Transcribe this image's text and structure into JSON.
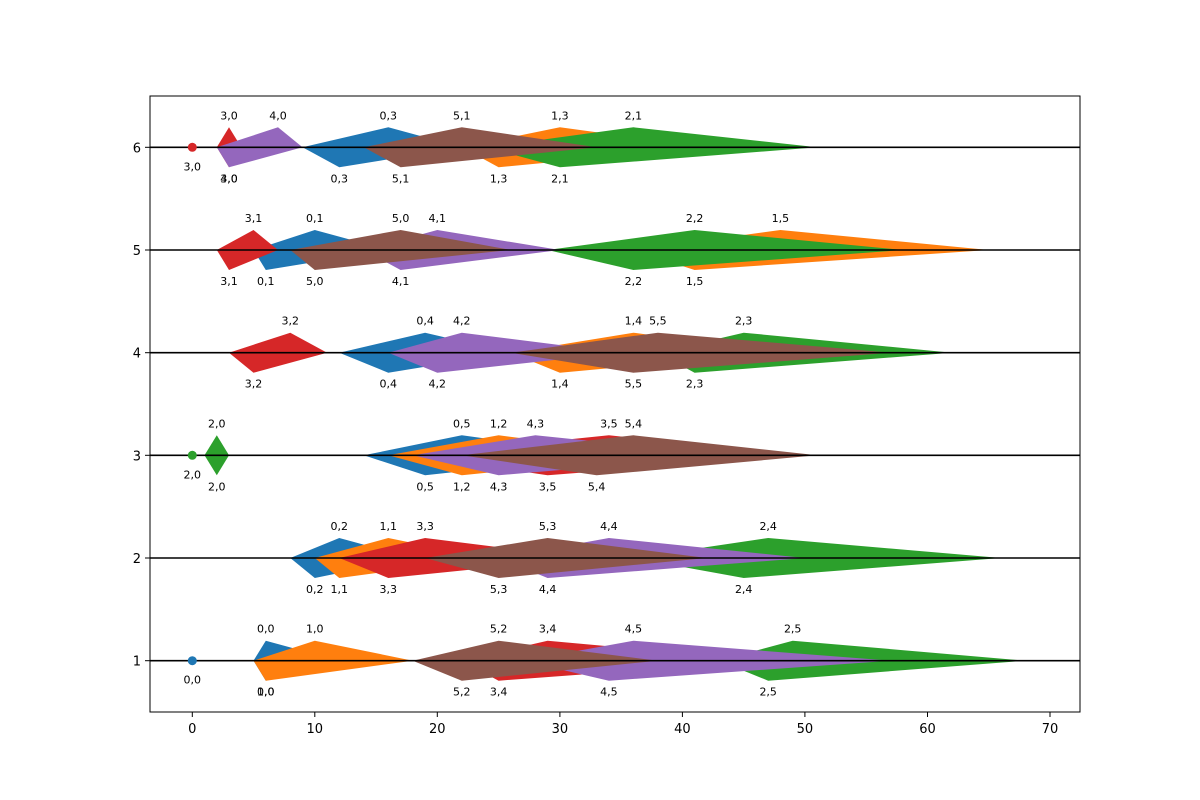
{
  "chart_data": {
    "type": "area",
    "title": "",
    "xlabel": "",
    "ylabel": "",
    "xlim": [
      -3.45,
      72.45
    ],
    "ylim": [
      0.5,
      6.5
    ],
    "x_ticks": [
      0,
      10,
      20,
      30,
      40,
      50,
      60,
      70
    ],
    "y_ticks": [
      1,
      2,
      3,
      4,
      5,
      6
    ],
    "reference_lines_y": [
      1,
      2,
      3,
      4,
      5,
      6
    ],
    "colors": [
      "#1f77b4",
      "#ff7f0e",
      "#2ca02c",
      "#d62728",
      "#9467bd",
      "#8c564b"
    ],
    "markers": [
      {
        "x": 0,
        "y": 6,
        "color": "#d62728",
        "label": "3,0"
      },
      {
        "x": 0,
        "y": 3,
        "color": "#2ca02c",
        "label": "2,0"
      },
      {
        "x": 0,
        "y": 1,
        "color": "#1f77b4",
        "label": "0,0"
      }
    ],
    "shapes": [
      {
        "row": 1,
        "color": "#2ca02c",
        "label": "2,5",
        "x_start": 43,
        "x_peak_above": 49,
        "x_peak_below": 47,
        "x_end": 68
      },
      {
        "row": 1,
        "color": "#d62728",
        "label": "3,4",
        "x_start": 22,
        "x_peak_above": 29,
        "x_peak_below": 25,
        "x_end": 47
      },
      {
        "row": 1,
        "color": "#9467bd",
        "label": "4,5",
        "x_start": 27,
        "x_peak_above": 36,
        "x_peak_below": 34,
        "x_end": 57
      },
      {
        "row": 1,
        "color": "#8c564b",
        "label": "5,2",
        "x_start": 18,
        "x_peak_above": 25,
        "x_peak_below": 22,
        "x_end": 38
      },
      {
        "row": 1,
        "color": "#1f77b4",
        "label": "0,0",
        "x_start": 5,
        "x_peak_above": 6,
        "x_peak_below": 6,
        "x_end": 12
      },
      {
        "row": 1,
        "color": "#ff7f0e",
        "label": "1,0",
        "x_start": 5,
        "x_peak_above": 10,
        "x_peak_below": 6,
        "x_end": 18
      },
      {
        "row": 2,
        "color": "#1f77b4",
        "label": "0,2",
        "x_start": 8,
        "x_peak_above": 12,
        "x_peak_below": 10,
        "x_end": 18
      },
      {
        "row": 2,
        "color": "#ff7f0e",
        "label": "1,1",
        "x_start": 10,
        "x_peak_above": 16,
        "x_peak_below": 12,
        "x_end": 24
      },
      {
        "row": 2,
        "color": "#2ca02c",
        "label": "2,4",
        "x_start": 36,
        "x_peak_above": 47,
        "x_peak_below": 45,
        "x_end": 66
      },
      {
        "row": 2,
        "color": "#d62728",
        "label": "3,3",
        "x_start": 12,
        "x_peak_above": 19,
        "x_peak_below": 16,
        "x_end": 32
      },
      {
        "row": 2,
        "color": "#9467bd",
        "label": "4,4",
        "x_start": 25,
        "x_peak_above": 34,
        "x_peak_below": 29,
        "x_end": 50
      },
      {
        "row": 2,
        "color": "#8c564b",
        "label": "5,3",
        "x_start": 19,
        "x_peak_above": 29,
        "x_peak_below": 25,
        "x_end": 42
      },
      {
        "row": 3,
        "color": "#1f77b4",
        "label": "0,5",
        "x_start": 14,
        "x_peak_above": 22,
        "x_peak_below": 19,
        "x_end": 34
      },
      {
        "row": 3,
        "color": "#ff7f0e",
        "label": "1,2",
        "x_start": 16,
        "x_peak_above": 25,
        "x_peak_below": 22,
        "x_end": 38
      },
      {
        "row": 3,
        "color": "#2ca02c",
        "label": "2,0",
        "x_start": 1,
        "x_peak_above": 2,
        "x_peak_below": 2,
        "x_end": 3
      },
      {
        "row": 3,
        "color": "#d62728",
        "label": "3,5",
        "x_start": 18,
        "x_peak_above": 34,
        "x_peak_below": 29,
        "x_end": 50
      },
      {
        "row": 3,
        "color": "#9467bd",
        "label": "4,3",
        "x_start": 18,
        "x_peak_above": 28,
        "x_peak_below": 25,
        "x_end": 44
      },
      {
        "row": 3,
        "color": "#8c564b",
        "label": "5,4",
        "x_start": 22,
        "x_peak_above": 36,
        "x_peak_below": 33,
        "x_end": 51
      },
      {
        "row": 4,
        "color": "#1f77b4",
        "label": "0,4",
        "x_start": 12,
        "x_peak_above": 19,
        "x_peak_below": 16,
        "x_end": 26
      },
      {
        "row": 4,
        "color": "#ff7f0e",
        "label": "1,4",
        "x_start": 26,
        "x_peak_above": 36,
        "x_peak_below": 30,
        "x_end": 48
      },
      {
        "row": 4,
        "color": "#2ca02c",
        "label": "2,3",
        "x_start": 38,
        "x_peak_above": 45,
        "x_peak_below": 41,
        "x_end": 62
      },
      {
        "row": 4,
        "color": "#d62728",
        "label": "3,2",
        "x_start": 3,
        "x_peak_above": 8,
        "x_peak_below": 5,
        "x_end": 11
      },
      {
        "row": 4,
        "color": "#9467bd",
        "label": "4,2",
        "x_start": 16,
        "x_peak_above": 22,
        "x_peak_below": 20,
        "x_end": 35
      },
      {
        "row": 4,
        "color": "#8c564b",
        "label": "5,5",
        "x_start": 26,
        "x_peak_above": 38,
        "x_peak_below": 36,
        "x_end": 57
      },
      {
        "row": 5,
        "color": "#1f77b4",
        "label": "0,1",
        "x_start": 5,
        "x_peak_above": 10,
        "x_peak_below": 6,
        "x_end": 16
      },
      {
        "row": 5,
        "color": "#ff7f0e",
        "label": "1,5",
        "x_start": 36,
        "x_peak_above": 48,
        "x_peak_below": 41,
        "x_end": 65
      },
      {
        "row": 5,
        "color": "#2ca02c",
        "label": "2,2",
        "x_start": 29,
        "x_peak_above": 41,
        "x_peak_below": 36,
        "x_end": 58
      },
      {
        "row": 5,
        "color": "#d62728",
        "label": "3,1",
        "x_start": 2,
        "x_peak_above": 5,
        "x_peak_below": 3,
        "x_end": 7
      },
      {
        "row": 5,
        "color": "#9467bd",
        "label": "4,1",
        "x_start": 14,
        "x_peak_above": 20,
        "x_peak_below": 17,
        "x_end": 30
      },
      {
        "row": 5,
        "color": "#8c564b",
        "label": "5,0",
        "x_start": 8,
        "x_peak_above": 17,
        "x_peak_below": 10,
        "x_end": 26
      },
      {
        "row": 6,
        "color": "#1f77b4",
        "label": "0,3",
        "x_start": 9,
        "x_peak_above": 16,
        "x_peak_below": 12,
        "x_end": 22
      },
      {
        "row": 6,
        "color": "#ff7f0e",
        "label": "1,3",
        "x_start": 22,
        "x_peak_above": 30,
        "x_peak_below": 25,
        "x_end": 42
      },
      {
        "row": 6,
        "color": "#2ca02c",
        "label": "2,1",
        "x_start": 24,
        "x_peak_above": 36,
        "x_peak_below": 30,
        "x_end": 51
      },
      {
        "row": 6,
        "color": "#d62728",
        "label": "3,0",
        "x_start": 2,
        "x_peak_above": 3,
        "x_peak_below": 3,
        "x_end": 4
      },
      {
        "row": 6,
        "color": "#9467bd",
        "label": "4,0",
        "x_start": 2,
        "x_peak_above": 7,
        "x_peak_below": 3,
        "x_end": 9
      },
      {
        "row": 6,
        "color": "#8c564b",
        "label": "5,1",
        "x_start": 14,
        "x_peak_above": 22,
        "x_peak_below": 17,
        "x_end": 33
      }
    ]
  }
}
